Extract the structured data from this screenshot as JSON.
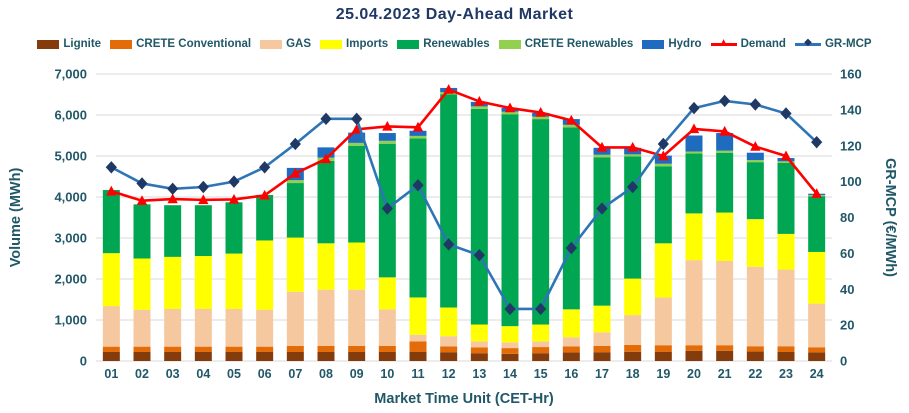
{
  "chart_data": {
    "type": "composite-stacked-bar-line",
    "title": "25.04.2023  Day-Ahead Market",
    "xlabel": "Market Time Unit (CET-Hr)",
    "ylabel_left": "Volume (MWh)",
    "ylabel_right": "GR-MCP (€/MWh)",
    "ylim_left": [
      0,
      7000
    ],
    "ylim_right": [
      0,
      160
    ],
    "grid": true,
    "legend_position": "top",
    "colors": {
      "title_text": "#1F3864",
      "axis_text": "#215868",
      "gridline": "#D9D9D9"
    },
    "yticks_left": [
      {
        "v": 0,
        "label": "0"
      },
      {
        "v": 1000,
        "label": "1,000"
      },
      {
        "v": 2000,
        "label": "2,000"
      },
      {
        "v": 3000,
        "label": "3,000"
      },
      {
        "v": 4000,
        "label": "4,000"
      },
      {
        "v": 5000,
        "label": "5,000"
      },
      {
        "v": 6000,
        "label": "6,000"
      },
      {
        "v": 7000,
        "label": "7,000"
      }
    ],
    "yticks_right": [
      {
        "v": 0,
        "label": "0"
      },
      {
        "v": 20,
        "label": "20"
      },
      {
        "v": 40,
        "label": "40"
      },
      {
        "v": 60,
        "label": "60"
      },
      {
        "v": 80,
        "label": "80"
      },
      {
        "v": 100,
        "label": "100"
      },
      {
        "v": 120,
        "label": "120"
      },
      {
        "v": 140,
        "label": "140"
      },
      {
        "v": 160,
        "label": "160"
      }
    ],
    "categories": [
      "01",
      "02",
      "03",
      "04",
      "05",
      "06",
      "07",
      "08",
      "09",
      "10",
      "11",
      "12",
      "13",
      "14",
      "15",
      "16",
      "17",
      "18",
      "19",
      "20",
      "21",
      "22",
      "23",
      "24"
    ],
    "bar_series": [
      {
        "name": "Lignite",
        "color": "#843C0C",
        "values": [
          220,
          220,
          220,
          220,
          220,
          220,
          220,
          220,
          220,
          220,
          220,
          215,
          190,
          175,
          190,
          210,
          215,
          225,
          220,
          250,
          250,
          230,
          220,
          210
        ]
      },
      {
        "name": "CRETE Conventional",
        "color": "#E36C09",
        "values": [
          130,
          130,
          130,
          130,
          130,
          130,
          150,
          150,
          150,
          150,
          260,
          140,
          140,
          140,
          150,
          145,
          155,
          165,
          165,
          135,
          135,
          130,
          140,
          125
        ]
      },
      {
        "name": "GAS",
        "color": "#F5C89F",
        "values": [
          990,
          900,
          920,
          920,
          920,
          900,
          1320,
          1370,
          1370,
          890,
          160,
          250,
          150,
          140,
          140,
          225,
          330,
          730,
          1165,
          2075,
          2055,
          1940,
          1870,
          1065
        ]
      },
      {
        "name": "Imports",
        "color": "#FFFF00",
        "values": [
          1290,
          1250,
          1270,
          1290,
          1350,
          1690,
          1320,
          1130,
          1150,
          780,
          910,
          700,
          410,
          395,
          410,
          680,
          650,
          890,
          1320,
          1140,
          1180,
          1160,
          870,
          1260
        ]
      },
      {
        "name": "Renewables",
        "color": "#00A651",
        "values": [
          1540,
          1320,
          1260,
          1240,
          1250,
          1110,
          1330,
          2010,
          2360,
          3260,
          3880,
          5195,
          5260,
          5170,
          5010,
          4440,
          3620,
          2980,
          1880,
          1460,
          1460,
          1390,
          1730,
          1360
        ]
      },
      {
        "name": "CRETE Renewables",
        "color": "#92D050",
        "values": [
          0,
          0,
          0,
          0,
          0,
          0,
          70,
          80,
          70,
          70,
          60,
          60,
          60,
          60,
          60,
          60,
          60,
          50,
          60,
          50,
          50,
          50,
          40,
          30
        ]
      },
      {
        "name": "Hydro",
        "color": "#1F6BC0",
        "values": [
          0,
          0,
          0,
          0,
          0,
          0,
          300,
          250,
          250,
          190,
          125,
          100,
          110,
          90,
          90,
          140,
          170,
          160,
          200,
          390,
          430,
          180,
          80,
          30
        ]
      }
    ],
    "line_series": [
      {
        "name": "Demand",
        "axis": "left",
        "color": "#FF0000",
        "marker": "triangle",
        "marker_color": "#FF0000",
        "values": [
          4140,
          3910,
          3950,
          3930,
          3940,
          4040,
          4575,
          4930,
          5650,
          5720,
          5700,
          6620,
          6330,
          6170,
          6060,
          5870,
          5210,
          5210,
          5000,
          5660,
          5600,
          5230,
          5000,
          4080
        ]
      },
      {
        "name": "GR-MCP",
        "axis": "right",
        "color": "#2E75B6",
        "marker": "diamond",
        "marker_color": "#1F3864",
        "values": [
          108,
          99,
          96,
          97,
          100,
          108,
          121,
          135,
          135,
          85,
          98,
          65,
          59,
          29,
          29,
          63,
          85,
          97,
          121,
          141,
          145,
          143,
          138,
          122
        ]
      }
    ],
    "legend": [
      {
        "label": "Lignite",
        "type": "rect",
        "color": "#843C0C"
      },
      {
        "label": "CRETE Conventional",
        "type": "rect",
        "color": "#E36C09"
      },
      {
        "label": "GAS",
        "type": "rect",
        "color": "#F5C89F"
      },
      {
        "label": "Imports",
        "type": "rect",
        "color": "#FFFF00"
      },
      {
        "label": "Renewables",
        "type": "rect",
        "color": "#00A651"
      },
      {
        "label": "CRETE Renewables",
        "type": "rect",
        "color": "#92D050"
      },
      {
        "label": "Hydro",
        "type": "rect",
        "color": "#1F6BC0"
      },
      {
        "label": "Demand",
        "type": "line",
        "color": "#FF0000",
        "marker": "▲",
        "marker_color": "#FF0000"
      },
      {
        "label": "GR-MCP",
        "type": "line",
        "color": "#2E75B6",
        "marker": "◆",
        "marker_color": "#1F3864"
      }
    ]
  }
}
